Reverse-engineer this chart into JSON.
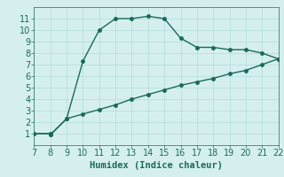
{
  "upper_x": [
    7,
    8,
    8,
    9,
    10,
    11,
    12,
    13,
    14,
    15,
    16,
    17,
    18,
    19,
    20,
    21,
    22
  ],
  "upper_y": [
    1.0,
    1.0,
    0.9,
    2.3,
    7.3,
    10.0,
    11.0,
    11.0,
    11.2,
    11.0,
    9.3,
    8.5,
    8.5,
    8.3,
    8.3,
    8.0,
    7.5
  ],
  "lower_x": [
    7,
    8,
    8,
    9,
    10,
    11,
    12,
    13,
    14,
    15,
    16,
    17,
    18,
    19,
    20,
    21,
    22
  ],
  "lower_y": [
    1.0,
    1.0,
    0.9,
    2.3,
    2.7,
    3.1,
    3.5,
    4.0,
    4.4,
    4.8,
    5.2,
    5.5,
    5.8,
    6.2,
    6.5,
    7.0,
    7.5
  ],
  "line_color": "#1a6b5a",
  "bg_color": "#d5efef",
  "grid_color": "#b8dede",
  "xlabel": "Humidex (Indice chaleur)",
  "xlim": [
    7,
    22
  ],
  "ylim": [
    0,
    12
  ],
  "xticks": [
    7,
    8,
    9,
    10,
    11,
    12,
    13,
    14,
    15,
    16,
    17,
    18,
    19,
    20,
    21,
    22
  ],
  "yticks": [
    1,
    2,
    3,
    4,
    5,
    6,
    7,
    8,
    9,
    10,
    11
  ],
  "marker_size": 2.5,
  "line_width": 1.0,
  "font_size": 7.5
}
